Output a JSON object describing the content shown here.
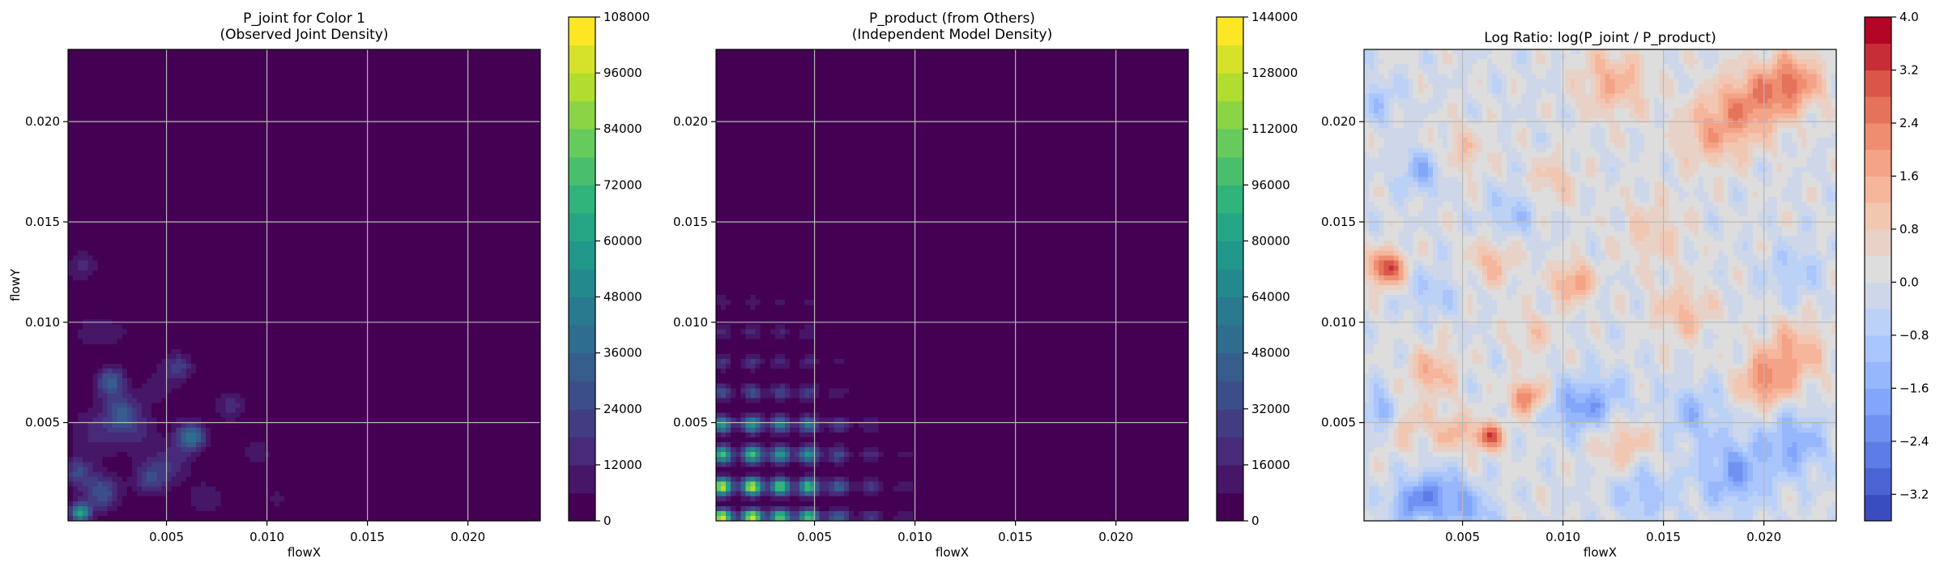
{
  "figure": {
    "background": "#ffffff",
    "grid": true,
    "grid_color": "#b8b8b8"
  },
  "chart_data": [
    {
      "type": "heatmap",
      "subtype": "filled-contour",
      "title": [
        "P_joint for Color 1",
        "(Observed Joint Density)"
      ],
      "xlabel": "flowX",
      "ylabel": "flowY",
      "xlim": [
        0.0001,
        0.0236
      ],
      "ylim": [
        0.0001,
        0.0236
      ],
      "xticks": [
        0.005,
        0.01,
        0.015,
        0.02
      ],
      "xtick_labels": [
        "0.005",
        "0.010",
        "0.015",
        "0.020"
      ],
      "yticks": [
        0.005,
        0.01,
        0.015,
        0.02
      ],
      "ytick_labels": [
        "0.005",
        "0.010",
        "0.015",
        "0.020"
      ],
      "colormap": "viridis",
      "colorbar": {
        "levels": [
          0,
          6000,
          12000,
          18000,
          24000,
          30000,
          36000,
          42000,
          48000,
          54000,
          60000,
          66000,
          72000,
          78000,
          84000,
          90000,
          96000,
          102000,
          108000
        ],
        "tick_values": [
          0,
          12000,
          24000,
          36000,
          48000,
          60000,
          72000,
          84000,
          96000,
          108000
        ],
        "tick_labels": [
          "0",
          "12000",
          "24000",
          "36000",
          "48000",
          "60000",
          "72000",
          "84000",
          "96000",
          "108000"
        ]
      },
      "blobs": [
        {
          "x": 0.0007,
          "y": 0.0005,
          "s": 0.00035,
          "amp": 60000
        },
        {
          "x": 0.0006,
          "y": 0.0025,
          "s": 0.0005,
          "amp": 24000
        },
        {
          "x": 0.0018,
          "y": 0.0015,
          "s": 0.0006,
          "amp": 30000
        },
        {
          "x": 0.0022,
          "y": 0.007,
          "s": 0.0005,
          "amp": 34000
        },
        {
          "x": 0.0028,
          "y": 0.0055,
          "s": 0.0006,
          "amp": 26000
        },
        {
          "x": 0.0062,
          "y": 0.0043,
          "s": 0.0005,
          "amp": 42000
        },
        {
          "x": 0.0056,
          "y": 0.0078,
          "s": 0.0005,
          "amp": 20000
        },
        {
          "x": 0.0042,
          "y": 0.0022,
          "s": 0.0006,
          "amp": 22000
        },
        {
          "x": 0.0082,
          "y": 0.0058,
          "s": 0.0005,
          "amp": 16000
        },
        {
          "x": 0.0008,
          "y": 0.0128,
          "s": 0.0005,
          "amp": 15000
        },
        {
          "x": 0.0012,
          "y": 0.0095,
          "s": 0.0005,
          "amp": 10000
        },
        {
          "x": 0.0035,
          "y": 0.0045,
          "s": 0.0008,
          "amp": 12000
        },
        {
          "x": 0.0046,
          "y": 0.0068,
          "s": 0.0007,
          "amp": 9000
        },
        {
          "x": 0.0095,
          "y": 0.0035,
          "s": 0.0007,
          "amp": 8000
        },
        {
          "x": 0.007,
          "y": 0.0012,
          "s": 0.0008,
          "amp": 9000
        },
        {
          "x": 0.0025,
          "y": 0.0095,
          "s": 0.0008,
          "amp": 7000
        },
        {
          "x": 0.0105,
          "y": 0.0012,
          "s": 0.0006,
          "amp": 7000
        },
        {
          "x": 0.0015,
          "y": 0.0045,
          "s": 0.0009,
          "amp": 14000
        },
        {
          "x": 0.0052,
          "y": 0.003,
          "s": 0.0007,
          "amp": 15000
        }
      ]
    },
    {
      "type": "heatmap",
      "subtype": "filled-contour",
      "title": [
        "P_product (from Others)",
        "(Independent Model Density)"
      ],
      "xlabel": "flowX",
      "ylabel": "",
      "xlim": [
        0.0001,
        0.0236
      ],
      "ylim": [
        0.0001,
        0.0236
      ],
      "xticks": [
        0.005,
        0.01,
        0.015,
        0.02
      ],
      "xtick_labels": [
        "0.005",
        "0.010",
        "0.015",
        "0.020"
      ],
      "yticks": [
        0.005,
        0.01,
        0.015,
        0.02
      ],
      "ytick_labels": [
        "0.005",
        "0.010",
        "0.015",
        "0.020"
      ],
      "colormap": "viridis",
      "colorbar": {
        "levels": [
          0,
          8000,
          16000,
          24000,
          32000,
          40000,
          48000,
          56000,
          64000,
          72000,
          80000,
          88000,
          96000,
          104000,
          112000,
          120000,
          128000,
          136000,
          144000
        ],
        "tick_values": [
          0,
          16000,
          32000,
          48000,
          64000,
          80000,
          96000,
          112000,
          128000,
          144000
        ],
        "tick_labels": [
          "0",
          "16000",
          "32000",
          "48000",
          "64000",
          "80000",
          "96000",
          "112000",
          "128000",
          "144000"
        ]
      },
      "marginal_x": [
        {
          "x": 0.0004,
          "s": 0.00035,
          "w": 1.0
        },
        {
          "x": 0.0019,
          "s": 0.00035,
          "w": 1.0
        },
        {
          "x": 0.0033,
          "s": 0.00035,
          "w": 0.8
        },
        {
          "x": 0.0047,
          "s": 0.00035,
          "w": 0.75
        },
        {
          "x": 0.0062,
          "s": 0.0004,
          "w": 0.35
        },
        {
          "x": 0.0078,
          "s": 0.0004,
          "w": 0.2
        },
        {
          "x": 0.0095,
          "s": 0.0005,
          "w": 0.1
        },
        {
          "x": 0.0115,
          "s": 0.0005,
          "w": 0.05
        }
      ],
      "marginal_y": [
        {
          "y": 0.0003,
          "s": 0.00025,
          "w": 1.0
        },
        {
          "y": 0.0018,
          "s": 0.0003,
          "w": 0.95
        },
        {
          "y": 0.0034,
          "s": 0.0003,
          "w": 0.7
        },
        {
          "y": 0.0049,
          "s": 0.0003,
          "w": 0.55
        },
        {
          "y": 0.0065,
          "s": 0.0003,
          "w": 0.28
        },
        {
          "y": 0.008,
          "s": 0.0003,
          "w": 0.18
        },
        {
          "y": 0.0095,
          "s": 0.0003,
          "w": 0.15
        },
        {
          "y": 0.011,
          "s": 0.0003,
          "w": 0.09
        },
        {
          "y": 0.0128,
          "s": 0.0003,
          "w": 0.06
        }
      ],
      "peak": 140000
    },
    {
      "type": "heatmap",
      "subtype": "filled-contour",
      "title": [
        "Log Ratio: log(P_joint / P_product)"
      ],
      "xlabel": "flowX",
      "ylabel": "",
      "xlim": [
        0.0001,
        0.0236
      ],
      "ylim": [
        0.0001,
        0.0236
      ],
      "xticks": [
        0.005,
        0.01,
        0.015,
        0.02
      ],
      "xtick_labels": [
        "0.005",
        "0.010",
        "0.015",
        "0.020"
      ],
      "yticks": [
        0.005,
        0.01,
        0.015,
        0.02
      ],
      "ytick_labels": [
        "0.005",
        "0.010",
        "0.015",
        "0.020"
      ],
      "colormap": "coolwarm",
      "colorbar": {
        "levels": [
          -3.6,
          -3.2,
          -2.8,
          -2.4,
          -2.0,
          -1.6,
          -1.2,
          -0.8,
          -0.4,
          0.0,
          0.4,
          0.8,
          1.2,
          1.6,
          2.0,
          2.4,
          2.8,
          3.2,
          3.6,
          4.0
        ],
        "tick_values": [
          -3.2,
          -2.4,
          -1.6,
          -0.8,
          0.0,
          0.8,
          1.6,
          2.4,
          3.2,
          4.0
        ],
        "tick_labels": [
          "−3.2",
          "−2.4",
          "−1.6",
          "−0.8",
          "0.0",
          "0.8",
          "1.6",
          "2.4",
          "3.2",
          "4.0"
        ]
      },
      "features": [
        {
          "x": 0.0012,
          "y": 0.0127,
          "s": 0.0006,
          "v": 3.4
        },
        {
          "x": 0.0063,
          "y": 0.0043,
          "s": 0.0005,
          "v": 3.0
        },
        {
          "x": 0.0082,
          "y": 0.0063,
          "s": 0.0006,
          "v": 2.4
        },
        {
          "x": 0.0105,
          "y": 0.012,
          "s": 0.0007,
          "v": 2.0
        },
        {
          "x": 0.0035,
          "y": 0.0075,
          "s": 0.0008,
          "v": 1.6
        },
        {
          "x": 0.0045,
          "y": 0.0045,
          "s": 0.0007,
          "v": 1.4
        },
        {
          "x": 0.002,
          "y": 0.005,
          "s": 0.0008,
          "v": 1.2
        },
        {
          "x": 0.005,
          "y": 0.0185,
          "s": 0.0009,
          "v": 1.0
        },
        {
          "x": 0.0065,
          "y": 0.013,
          "s": 0.0008,
          "v": 1.3
        },
        {
          "x": 0.0195,
          "y": 0.021,
          "s": 0.0012,
          "v": 2.0
        },
        {
          "x": 0.0215,
          "y": 0.022,
          "s": 0.001,
          "v": 2.2
        },
        {
          "x": 0.0125,
          "y": 0.022,
          "s": 0.0012,
          "v": 1.5
        },
        {
          "x": 0.0175,
          "y": 0.0195,
          "s": 0.0012,
          "v": 1.6
        },
        {
          "x": 0.02,
          "y": 0.007,
          "s": 0.0009,
          "v": 2.0
        },
        {
          "x": 0.0215,
          "y": 0.0085,
          "s": 0.0011,
          "v": 1.6
        },
        {
          "x": 0.016,
          "y": 0.0105,
          "s": 0.001,
          "v": 1.2
        },
        {
          "x": 0.0095,
          "y": 0.017,
          "s": 0.0009,
          "v": 1.0
        },
        {
          "x": 0.0145,
          "y": 0.0145,
          "s": 0.0012,
          "v": 0.9
        },
        {
          "x": 0.013,
          "y": 0.004,
          "s": 0.001,
          "v": 1.2
        },
        {
          "x": 0.0085,
          "y": 0.0095,
          "s": 0.0008,
          "v": 0.9
        },
        {
          "x": 0.003,
          "y": 0.0175,
          "s": 0.0008,
          "v": -1.4
        },
        {
          "x": 0.001,
          "y": 0.0055,
          "s": 0.0007,
          "v": -1.8
        },
        {
          "x": 0.0025,
          "y": 0.001,
          "s": 0.0008,
          "v": -1.8
        },
        {
          "x": 0.004,
          "y": 0.0015,
          "s": 0.0009,
          "v": -1.6
        },
        {
          "x": 0.0105,
          "y": 0.0057,
          "s": 0.0009,
          "v": -1.4
        },
        {
          "x": 0.012,
          "y": 0.006,
          "s": 0.001,
          "v": -1.2
        },
        {
          "x": 0.0185,
          "y": 0.0025,
          "s": 0.0012,
          "v": -1.8
        },
        {
          "x": 0.0215,
          "y": 0.004,
          "s": 0.0011,
          "v": -1.6
        },
        {
          "x": 0.0165,
          "y": 0.0055,
          "s": 0.001,
          "v": -1.2
        },
        {
          "x": 0.0008,
          "y": 0.021,
          "s": 0.0008,
          "v": -0.9
        },
        {
          "x": 0.0055,
          "y": 0.0005,
          "s": 0.0008,
          "v": -1.3
        },
        {
          "x": 0.014,
          "y": 0.0015,
          "s": 0.001,
          "v": -1.2
        },
        {
          "x": 0.0215,
          "y": 0.0125,
          "s": 0.001,
          "v": -0.8
        },
        {
          "x": 0.0075,
          "y": 0.0155,
          "s": 0.0009,
          "v": -1.0
        },
        {
          "x": 0.0035,
          "y": 0.0115,
          "s": 0.0008,
          "v": -0.9
        }
      ]
    }
  ]
}
